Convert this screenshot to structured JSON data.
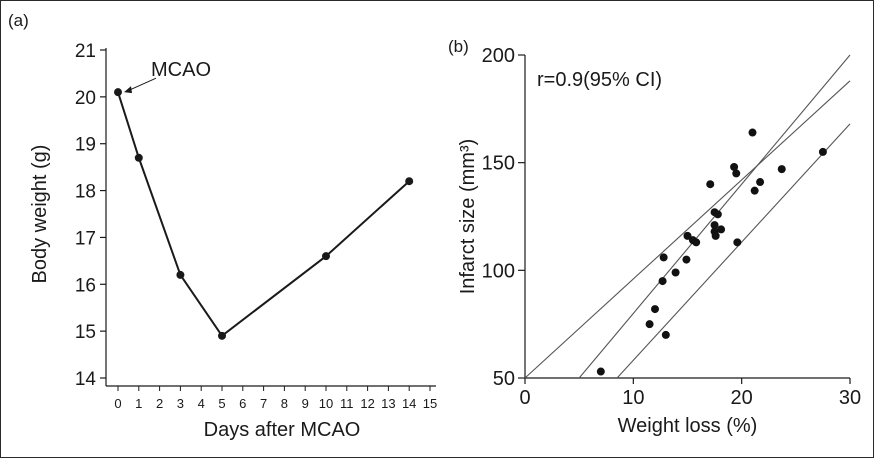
{
  "chart_data": [
    {
      "panel": "(a)",
      "type": "line",
      "xlabel": "Days after MCAO",
      "ylabel": "Body weight (g)",
      "xlim": [
        0,
        15
      ],
      "ylim": [
        14,
        21
      ],
      "xticks": [
        0,
        1,
        2,
        3,
        4,
        5,
        6,
        7,
        8,
        9,
        10,
        11,
        12,
        13,
        14,
        15
      ],
      "yticks": [
        14,
        15,
        16,
        17,
        18,
        19,
        20,
        21
      ],
      "x": [
        0,
        1,
        3,
        5,
        10,
        14
      ],
      "y": [
        20.1,
        18.7,
        16.2,
        14.9,
        16.6,
        18.2
      ],
      "annotation": {
        "text": "MCAO",
        "x": 0,
        "y": 20.1
      },
      "line_color": "#1a1a1a"
    },
    {
      "panel": "(b)",
      "type": "scatter",
      "xlabel": "Weight loss (%)",
      "ylabel": "Infarct size (mm³)",
      "xlim": [
        0,
        30
      ],
      "ylim": [
        50,
        200
      ],
      "xticks": [
        0,
        10,
        20,
        30
      ],
      "yticks": [
        50,
        100,
        150,
        200
      ],
      "annotation": "r=0.9(95% CI)",
      "points": [
        [
          7,
          53
        ],
        [
          11.5,
          75
        ],
        [
          12,
          82
        ],
        [
          13,
          70
        ],
        [
          12.7,
          95
        ],
        [
          12.8,
          106
        ],
        [
          13.9,
          99
        ],
        [
          14.9,
          105
        ],
        [
          15,
          116
        ],
        [
          15.5,
          114
        ],
        [
          15.8,
          113
        ],
        [
          17.1,
          140
        ],
        [
          17.5,
          127
        ],
        [
          17.8,
          126
        ],
        [
          17.5,
          121
        ],
        [
          17.5,
          118
        ],
        [
          17.6,
          116
        ],
        [
          18.1,
          119
        ],
        [
          19.3,
          148
        ],
        [
          19.5,
          145
        ],
        [
          19.6,
          113
        ],
        [
          21,
          164
        ],
        [
          21.2,
          137
        ],
        [
          21.7,
          141
        ],
        [
          23.7,
          147
        ],
        [
          27.5,
          155
        ]
      ],
      "fit_lines": [
        {
          "name": "upper",
          "x": [
            5,
            30
          ],
          "y": [
            50,
            200
          ]
        },
        {
          "name": "fit",
          "x": [
            0,
            30
          ],
          "y": [
            50,
            188
          ]
        },
        {
          "name": "lower",
          "x": [
            8.5,
            30
          ],
          "y": [
            50,
            168
          ]
        }
      ],
      "marker_color": "#111111"
    }
  ]
}
